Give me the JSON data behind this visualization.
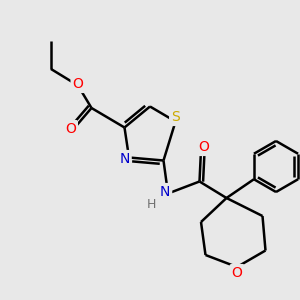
{
  "bg_color": "#e8e8e8",
  "bond_color": "#000000",
  "bond_width": 1.8,
  "atom_colors": {
    "O": "#ff0000",
    "N": "#0000cc",
    "S": "#ccaa00",
    "C": "#000000",
    "H": "#707070"
  },
  "font_size": 10,
  "font_size_nh": 9
}
